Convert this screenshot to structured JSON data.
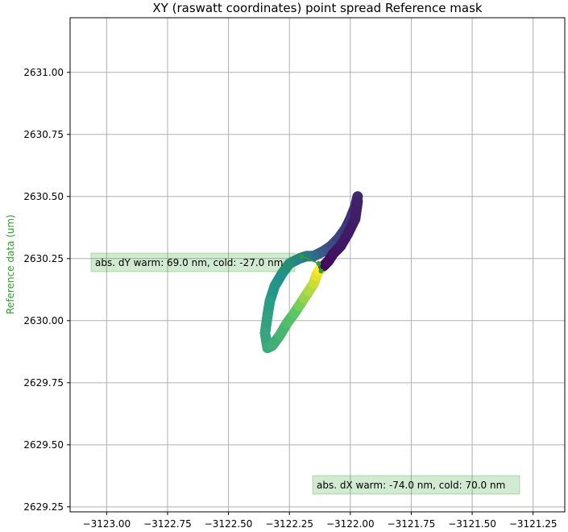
{
  "chart_data": {
    "type": "scatter",
    "title": "XY (raswatt coordinates) point spread Reference mask",
    "xlabel": "",
    "ylabel": "Reference data (um)",
    "xlim": [
      -3123.15,
      -3121.12
    ],
    "ylim": [
      2629.23,
      2631.22
    ],
    "xticks": [
      "−3123.00",
      "−3122.75",
      "−3122.50",
      "−3122.25",
      "−3122.00",
      "−3121.75",
      "−3121.50",
      "−3121.25"
    ],
    "xtick_values": [
      -3123.0,
      -3122.75,
      -3122.5,
      -3122.25,
      -3122.0,
      -3121.75,
      -3121.5,
      -3121.25
    ],
    "yticks": [
      "2629.25",
      "2629.50",
      "2629.75",
      "2630.00",
      "2630.25",
      "2630.50",
      "2630.75",
      "2631.00"
    ],
    "ytick_values": [
      2629.25,
      2629.5,
      2629.75,
      2630.0,
      2630.25,
      2630.5,
      2630.75,
      2631.0
    ],
    "grid": true,
    "colormap": "viridis",
    "series": [
      {
        "x": [
          -3121.97,
          -3121.98,
          -3122.0,
          -3122.02,
          -3122.05,
          -3122.08,
          -3122.11,
          -3122.13,
          -3122.15,
          -3122.18,
          -3122.21,
          -3122.25,
          -3122.28,
          -3122.31,
          -3122.33,
          -3122.34,
          -3122.35,
          -3122.34,
          -3122.32,
          -3122.29,
          -3122.26,
          -3122.23,
          -3122.21,
          -3122.19,
          -3122.17,
          -3122.15,
          -3122.14,
          -3122.13,
          -3122.11,
          -3122.09,
          -3122.07,
          -3122.04,
          -3122.01,
          -3121.98,
          -3121.97
        ],
        "y": [
          2630.5,
          2630.46,
          2630.41,
          2630.37,
          2630.33,
          2630.3,
          2630.28,
          2630.27,
          2630.26,
          2630.26,
          2630.25,
          2630.23,
          2630.19,
          2630.14,
          2630.08,
          2630.02,
          2629.95,
          2629.89,
          2629.9,
          2629.94,
          2629.99,
          2630.03,
          2630.06,
          2630.09,
          2630.12,
          2630.15,
          2630.18,
          2630.2,
          2630.22,
          2630.24,
          2630.27,
          2630.3,
          2630.35,
          2630.41,
          2630.48
        ],
        "color_values": [
          0.12,
          0.14,
          0.16,
          0.18,
          0.2,
          0.23,
          0.26,
          0.3,
          0.35,
          0.4,
          0.44,
          0.47,
          0.5,
          0.52,
          0.55,
          0.57,
          0.59,
          0.61,
          0.63,
          0.66,
          0.7,
          0.74,
          0.79,
          0.84,
          0.88,
          0.92,
          0.96,
          1.0,
          0.02,
          0.04,
          0.06,
          0.07,
          0.08,
          0.09,
          0.1
        ]
      }
    ],
    "arrow_points": [
      {
        "x": -3122.2,
        "y": 2630.26,
        "color": "#2ca02c"
      },
      {
        "x": -3122.13,
        "y": 2630.23,
        "color": "#2ca02c"
      },
      {
        "x": -3122.12,
        "y": 2630.2,
        "color": "#2ca02c"
      }
    ],
    "annotations": [
      {
        "text": "abs. dY warm: 69.0 nm, cold: -27.0 nm",
        "anchor": "middle-left"
      },
      {
        "text": "abs. dX warm: -74.0 nm, cold: 70.0 nm",
        "anchor": "bottom-right"
      }
    ],
    "annotation_color": "#2ca02c"
  }
}
